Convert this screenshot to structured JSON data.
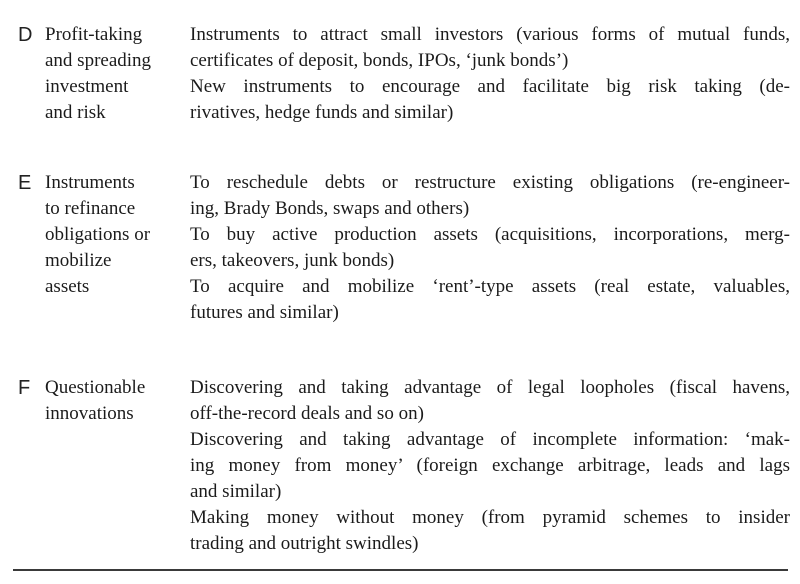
{
  "document": {
    "colors": {
      "text": "#1b1b1b",
      "rule": "#3a3a3a",
      "background": "#ffffff"
    },
    "rows": [
      {
        "letter": "D",
        "label_lines": [
          "Profit-taking",
          "and spreading",
          "investment",
          "and risk"
        ],
        "paragraphs": [
          {
            "lines": [
              "Instruments to attract small investors (various forms of mutual funds,",
              "certificates of deposit, bonds, IPOs, ‘junk bonds’)"
            ]
          },
          {
            "lines": [
              "New instruments to encourage and facilitate big risk taking (de-",
              "rivatives, hedge funds and similar)"
            ]
          }
        ]
      },
      {
        "letter": "E",
        "label_lines": [
          "Instruments",
          "to refinance",
          "obligations or",
          "mobilize",
          "assets"
        ],
        "paragraphs": [
          {
            "lines": [
              "To reschedule debts or restructure existing obligations (re-engineer-",
              "ing, Brady Bonds, swaps and others)"
            ]
          },
          {
            "lines": [
              "To buy active production assets (acquisitions, incorporations, merg-",
              "ers, takeovers, junk bonds)"
            ]
          },
          {
            "lines": [
              "To acquire and mobilize ‘rent’-type assets (real estate, valuables,",
              "futures and similar)"
            ]
          }
        ]
      },
      {
        "letter": "F",
        "label_lines": [
          "Questionable",
          "innovations"
        ],
        "paragraphs": [
          {
            "lines": [
              "Discovering and taking advantage of legal loopholes (fiscal havens,",
              "off-the-record deals and so on)"
            ]
          },
          {
            "lines": [
              "Discovering and taking advantage of incomplete information: ‘mak-",
              "ing money from money’ (foreign exchange arbitrage, leads and lags",
              "and similar)"
            ]
          },
          {
            "lines": [
              "Making money without money (from pyramid schemes to insider",
              "trading and outright swindles)"
            ]
          }
        ]
      }
    ]
  }
}
